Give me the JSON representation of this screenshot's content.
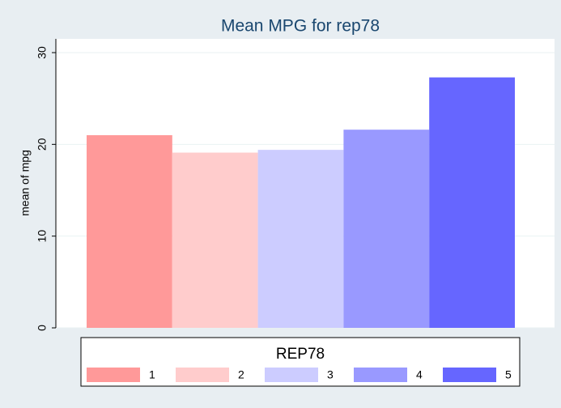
{
  "chart_data": {
    "type": "bar",
    "title": "Mean MPG for rep78",
    "y_label": "mean of mpg",
    "categories": [
      null
    ],
    "series": [
      {
        "name": "1",
        "color": "#ff9999",
        "values": [
          21
        ]
      },
      {
        "name": "2",
        "color": "#ffcccc",
        "values": [
          19.1
        ]
      },
      {
        "name": "3",
        "color": "#ccccff",
        "values": [
          19.4
        ]
      },
      {
        "name": "4",
        "color": "#9999ff",
        "values": [
          21.6
        ]
      },
      {
        "name": "5",
        "color": "#6666ff",
        "values": [
          27.3
        ]
      }
    ],
    "legend_title": "REP78",
    "legend_position": "bottom",
    "ylim": [
      0,
      31.5
    ],
    "yticks": [
      0,
      10,
      20,
      30
    ],
    "grid": true
  }
}
